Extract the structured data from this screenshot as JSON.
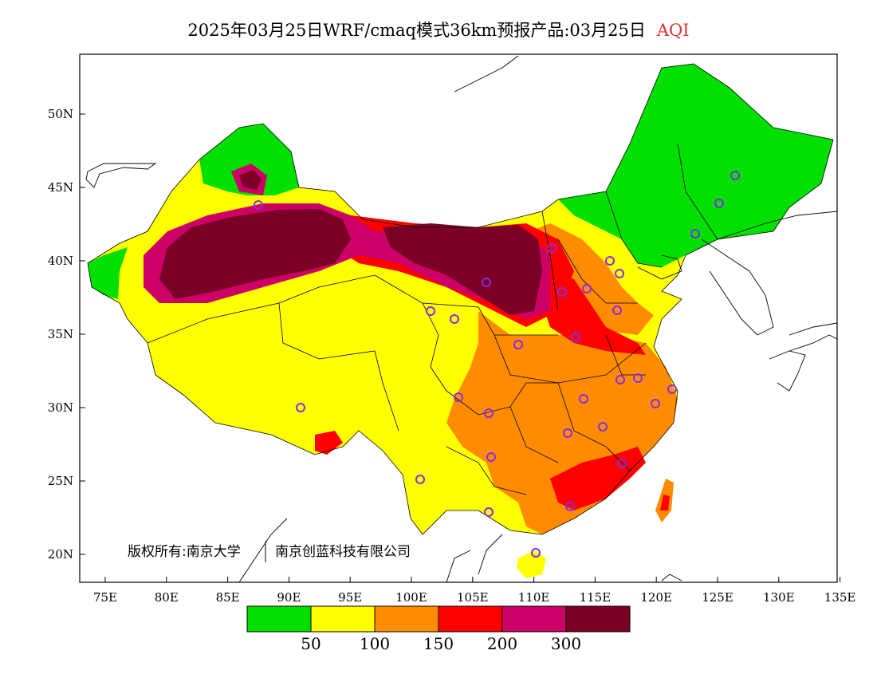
{
  "title": {
    "main": "2025年03月25日WRF/cmaq模式36km预报产品:03月25日",
    "variable": "AQI"
  },
  "copyright": {
    "text": "版权所有:南京大学",
    "text2": "南京创蓝科技有限公司"
  },
  "axes": {
    "lon_ticks": [
      "75E",
      "80E",
      "85E",
      "90E",
      "95E",
      "100E",
      "105E",
      "110E",
      "115E",
      "120E",
      "125E",
      "130E",
      "135E"
    ],
    "lat_ticks": [
      "50N",
      "45N",
      "40N",
      "35N",
      "30N",
      "25N",
      "20N"
    ]
  },
  "legend": {
    "colors": [
      "#00e000",
      "#ffff00",
      "#ff8c00",
      "#ff0000",
      "#cc0066",
      "#7a0026"
    ],
    "labels": [
      "50",
      "100",
      "150",
      "200",
      "300"
    ]
  },
  "colors": {
    "ocean": "#ffffff",
    "station": "#8a2be2",
    "boundary": "#000000"
  }
}
